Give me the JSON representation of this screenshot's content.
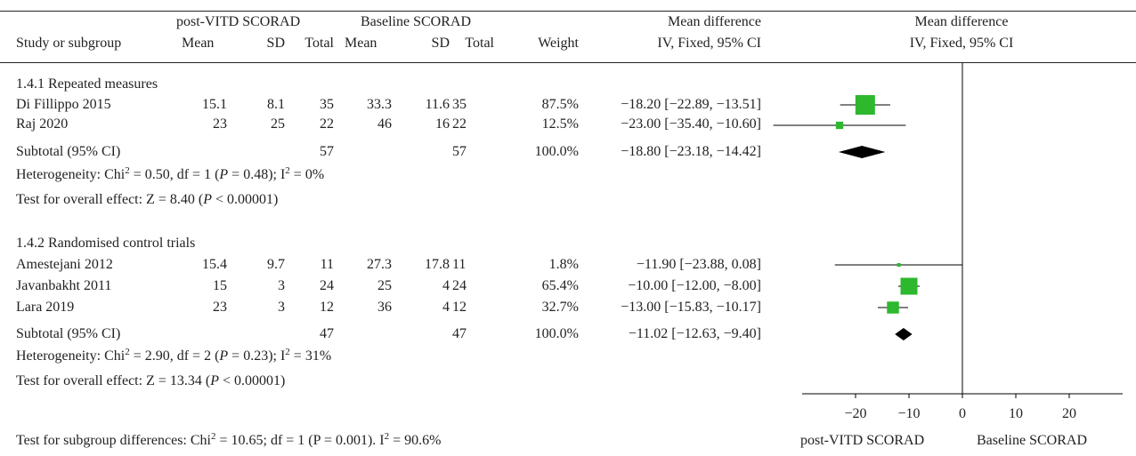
{
  "header": {
    "group1": "post-VITD SCORAD",
    "group2": "Baseline SCORAD",
    "col_study": "Study or subgroup",
    "col_mean": "Mean",
    "col_sd": "SD",
    "col_total": "Total",
    "col_weight": "Weight",
    "col_md_title": "Mean difference",
    "col_md_method": "IV, Fixed, 95% CI",
    "plot_title": "Mean difference",
    "plot_method": "IV, Fixed, 95% CI"
  },
  "subgroups": [
    {
      "title": "1.4.1 Repeated measures",
      "studies": [
        {
          "name": "Di Fillippo 2015",
          "m1": "15.1",
          "sd1": "8.1",
          "n1": "35",
          "m2": "33.3",
          "sd2": "11.6",
          "n2": "35",
          "weight": "87.5%",
          "ci_text": "−18.20 [−22.89, −13.51]"
        },
        {
          "name": "Raj 2020",
          "m1": "23",
          "sd1": "25",
          "n1": "22",
          "m2": "46",
          "sd2": "16",
          "n2": "22",
          "weight": "12.5%",
          "ci_text": "−23.00 [−35.40, −10.60]"
        }
      ],
      "subtotal": {
        "label": "Subtotal (95% CI)",
        "n1": "57",
        "n2": "57",
        "weight": "100.0%",
        "ci_text": "−18.80 [−23.18, −14.42]"
      },
      "heterogeneity": {
        "prefix": "Heterogeneity: Chi",
        "chi_sup": "2",
        "chi_val": " = 0.50, df = 1 (",
        "p": "P",
        "p_val": " = 0.48); I",
        "i_sup": "2",
        "i_val": " = 0%"
      },
      "overall": {
        "prefix": "Test for overall effect: Z = 8.40 (",
        "p": "P",
        "p_val": " < 0.00001)"
      }
    },
    {
      "title": "1.4.2 Randomised control trials",
      "studies": [
        {
          "name": "Amestejani 2012",
          "m1": "15.4",
          "sd1": "9.7",
          "n1": "11",
          "m2": "27.3",
          "sd2": "17.8",
          "n2": "11",
          "weight": "1.8%",
          "ci_text": "−11.90 [−23.88, 0.08]"
        },
        {
          "name": "Javanbakht 2011",
          "m1": "15",
          "sd1": "3",
          "n1": "24",
          "m2": "25",
          "sd2": "4",
          "n2": "24",
          "weight": "65.4%",
          "ci_text": "−10.00 [−12.00, −8.00]"
        },
        {
          "name": "Lara 2019",
          "m1": "23",
          "sd1": "3",
          "n1": "12",
          "m2": "36",
          "sd2": "4",
          "n2": "12",
          "weight": "32.7%",
          "ci_text": "−13.00 [−15.83, −10.17]"
        }
      ],
      "subtotal": {
        "label": "Subtotal (95% CI)",
        "n1": "47",
        "n2": "47",
        "weight": "100.0%",
        "ci_text": "−11.02 [−12.63, −9.40]"
      },
      "heterogeneity": {
        "prefix": "Heterogeneity: Chi",
        "chi_sup": "2",
        "chi_val": " = 2.90, df = 2 (",
        "p": "P",
        "p_val": " = 0.23); I",
        "i_sup": "2",
        "i_val": " = 31%"
      },
      "overall": {
        "prefix": "Test for overall effect: Z = 13.34 (",
        "p": "P",
        "p_val": " < 0.00001)"
      }
    }
  ],
  "subgroup_test": {
    "prefix": "Test for subgroup differences: Chi",
    "chi_sup": "2",
    "rest": " = 10.65; df = 1 (P = 0.001). I",
    "i_sup": "2",
    "i_val": " = 90.6%"
  },
  "chart_data": {
    "type": "forest",
    "xlim": [
      -30,
      30
    ],
    "ticks": [
      -20,
      -10,
      0,
      10,
      20
    ],
    "tick_labels": [
      "−20",
      "−10",
      "0",
      "10",
      "20"
    ],
    "axis_left_label": "post-VITD SCORAD",
    "axis_right_label": "Baseline SCORAD",
    "studies": [
      {
        "name": "Di Fillippo 2015",
        "md": -18.2,
        "lo": -22.89,
        "hi": -13.51,
        "weight": 87.5
      },
      {
        "name": "Raj 2020",
        "md": -23.0,
        "lo": -35.4,
        "hi": -10.6,
        "weight": 12.5
      },
      {
        "name": "Amestejani 2012",
        "md": -11.9,
        "lo": -23.88,
        "hi": 0.08,
        "weight": 1.8
      },
      {
        "name": "Javanbakht 2011",
        "md": -10.0,
        "lo": -12.0,
        "hi": -8.0,
        "weight": 65.4
      },
      {
        "name": "Lara 2019",
        "md": -13.0,
        "lo": -15.83,
        "hi": -10.17,
        "weight": 32.7
      }
    ],
    "subtotals": [
      {
        "name": "1.4.1 Subtotal",
        "md": -18.8,
        "lo": -23.18,
        "hi": -14.42
      },
      {
        "name": "1.4.2 Subtotal",
        "md": -11.02,
        "lo": -12.63,
        "hi": -9.4
      }
    ],
    "colors": {
      "marker": "#2db82d",
      "diamond": "#000000",
      "line": "#000000"
    }
  }
}
